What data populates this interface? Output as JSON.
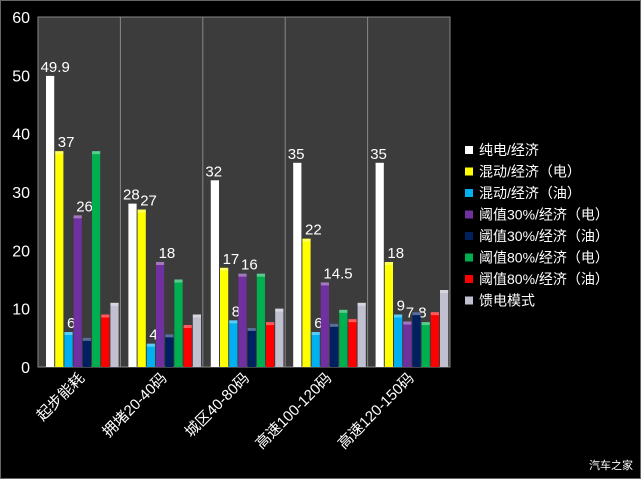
{
  "chart_data": {
    "type": "bar",
    "title": "",
    "xlabel": "",
    "ylabel": "",
    "ylim": [
      0,
      60
    ],
    "yticks": [
      0,
      10,
      20,
      30,
      40,
      50,
      60
    ],
    "categories": [
      "起步能耗",
      "拥堵20-40码",
      "城区40-80码",
      "高速100-120码",
      "高速120-150码"
    ],
    "legend_position": "right",
    "series": [
      {
        "name": "纯电/经济",
        "color": "#ffffff",
        "values": [
          49.9,
          28,
          32,
          35,
          35
        ],
        "labels": [
          "49.9",
          "28",
          "32",
          "35",
          "35"
        ]
      },
      {
        "name": "混动/经济（电）",
        "color": "#ffff00",
        "values": [
          37,
          27,
          17,
          22,
          18
        ],
        "labels": [
          "37",
          "27",
          "17",
          "22",
          "18"
        ]
      },
      {
        "name": "混动/经济（油）",
        "color": "#00b0f0",
        "values": [
          6,
          4,
          8,
          6,
          9
        ],
        "labels": [
          "6",
          "4",
          "8",
          "6",
          "9"
        ]
      },
      {
        "name": "阈值30%/经济（电）",
        "color": "#7030a0",
        "values": [
          26,
          18,
          16,
          14.5,
          7.8
        ],
        "labels": [
          "26",
          "18",
          "16",
          "14.5",
          "7.8"
        ]
      },
      {
        "name": "阈值30%/经济（油）",
        "color": "#002060",
        "values": [
          5,
          5.6,
          6.7,
          7.4,
          9.4
        ],
        "labels": [
          "",
          "",
          "",
          "",
          ""
        ]
      },
      {
        "name": "阈值80%/经济（电）",
        "color": "#00b050",
        "values": [
          37,
          15,
          16,
          9.8,
          7.7
        ],
        "labels": [
          "",
          "",
          "",
          "",
          ""
        ]
      },
      {
        "name": "阈值80%/经济（油）",
        "color": "#ff0000",
        "values": [
          9,
          7.2,
          7.7,
          8.2,
          9.4
        ],
        "labels": [
          "",
          "",
          "",
          "",
          ""
        ]
      },
      {
        "name": "馈电模式",
        "color": "#c0c0d0",
        "values": [
          11,
          9,
          10,
          11,
          13.2
        ],
        "labels": [
          "",
          "",
          "",
          "",
          ""
        ]
      }
    ]
  },
  "watermark": "汽车之家"
}
